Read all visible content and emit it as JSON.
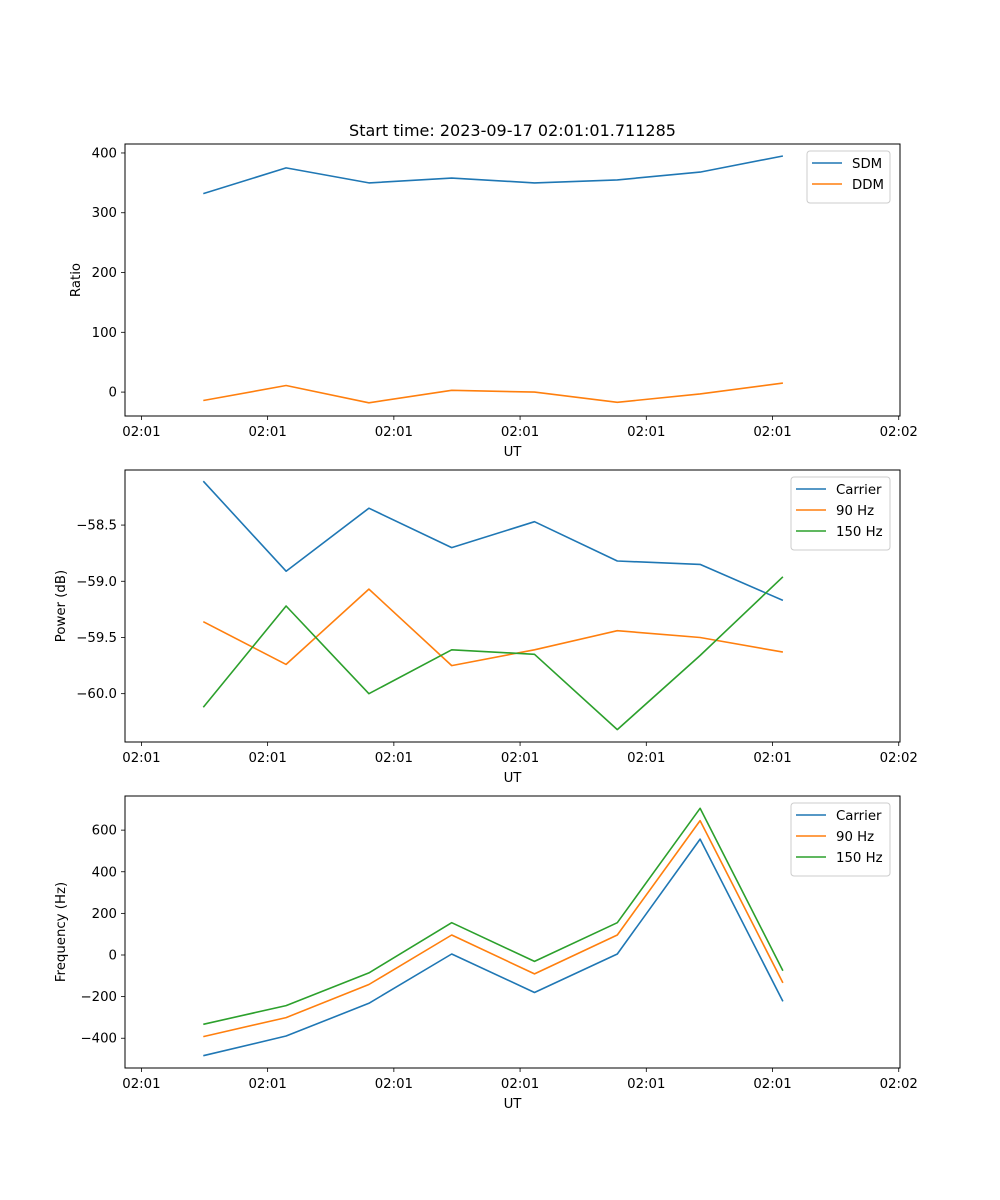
{
  "figure_title": "Start time: 2023-09-17 02:01:01.711285",
  "chart_data": [
    {
      "type": "line",
      "title": "Start time: 2023-09-17 02:01:01.711285",
      "xlabel": "UT",
      "ylabel": "Ratio",
      "x_tick_labels": [
        "02:01",
        "02:01",
        "02:01",
        "02:01",
        "02:01",
        "02:01",
        "02:02"
      ],
      "x": [
        0.49,
        1.146,
        1.802,
        2.458,
        3.114,
        3.77,
        4.426,
        5.082
      ],
      "xlim": [
        -0.13,
        6.01
      ],
      "ylim": [
        -40,
        415
      ],
      "y_ticks": [
        0,
        100,
        200,
        300,
        400
      ],
      "y_tick_labels": [
        "0",
        "100",
        "200",
        "300",
        "400"
      ],
      "grid": false,
      "legend_position": "top-right",
      "series": [
        {
          "name": "SDM",
          "color": "#1f77b4",
          "values": [
            332,
            375,
            350,
            358,
            350,
            355,
            368,
            395
          ]
        },
        {
          "name": "DDM",
          "color": "#ff7f0e",
          "values": [
            -14,
            11,
            -18,
            3,
            0,
            -17,
            -3,
            15
          ]
        }
      ]
    },
    {
      "type": "line",
      "title": "",
      "xlabel": "UT",
      "ylabel": "Power (dB)",
      "x_tick_labels": [
        "02:01",
        "02:01",
        "02:01",
        "02:01",
        "02:01",
        "02:01",
        "02:02"
      ],
      "x": [
        0.49,
        1.146,
        1.802,
        2.458,
        3.114,
        3.77,
        4.426,
        5.082
      ],
      "xlim": [
        -0.13,
        6.01
      ],
      "ylim": [
        -60.43,
        -58.01
      ],
      "y_ticks": [
        -58.5,
        -59.0,
        -59.5,
        -60.0
      ],
      "y_tick_labels": [
        "−58.5",
        "−59.0",
        "−59.5",
        "−60.0"
      ],
      "grid": false,
      "legend_position": "top-right",
      "series": [
        {
          "name": "Carrier",
          "color": "#1f77b4",
          "values": [
            -58.11,
            -58.91,
            -58.35,
            -58.7,
            -58.47,
            -58.82,
            -58.85,
            -59.17
          ]
        },
        {
          "name": "90 Hz",
          "color": "#ff7f0e",
          "values": [
            -59.36,
            -59.74,
            -59.07,
            -59.75,
            -59.61,
            -59.44,
            -59.5,
            -59.63
          ]
        },
        {
          "name": "150 Hz",
          "color": "#2ca02c",
          "values": [
            -60.12,
            -59.22,
            -60.0,
            -59.61,
            -59.65,
            -60.32,
            -59.66,
            -58.96
          ]
        }
      ]
    },
    {
      "type": "line",
      "title": "",
      "xlabel": "UT",
      "ylabel": "Frequency (Hz)",
      "x_tick_labels": [
        "02:01",
        "02:01",
        "02:01",
        "02:01",
        "02:01",
        "02:01",
        "02:02"
      ],
      "x": [
        0.49,
        1.146,
        1.802,
        2.458,
        3.114,
        3.77,
        4.426,
        5.082
      ],
      "xlim": [
        -0.13,
        6.01
      ],
      "ylim": [
        -543,
        764
      ],
      "y_ticks": [
        600,
        400,
        200,
        0,
        -200,
        -400
      ],
      "y_tick_labels": [
        "600",
        "400",
        "200",
        "0",
        "−200",
        "−400"
      ],
      "grid": false,
      "legend_position": "top-right",
      "series": [
        {
          "name": "Carrier",
          "color": "#1f77b4",
          "values": [
            -484,
            -389,
            -232,
            5,
            -180,
            5,
            557,
            -223
          ]
        },
        {
          "name": "90 Hz",
          "color": "#ff7f0e",
          "values": [
            -392,
            -301,
            -142,
            96,
            -91,
            96,
            646,
            -134
          ]
        },
        {
          "name": "150 Hz",
          "color": "#2ca02c",
          "values": [
            -333,
            -243,
            -86,
            155,
            -31,
            155,
            705,
            -76
          ]
        }
      ]
    }
  ]
}
